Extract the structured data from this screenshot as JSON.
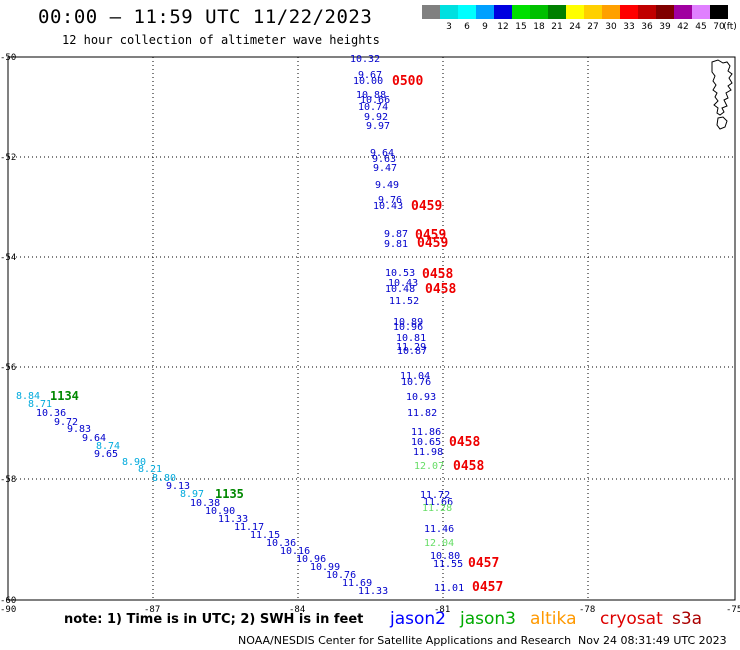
{
  "header": {
    "title": "00:00 – 11:59 UTC 11/22/2023",
    "subtitle": "12 hour collection of altimeter wave heights"
  },
  "colorbar": {
    "unit_label": "(ft)",
    "swatches": [
      {
        "color": "#808080",
        "label": ""
      },
      {
        "color": "#00e0e0",
        "label": "3"
      },
      {
        "color": "#00ffff",
        "label": "6"
      },
      {
        "color": "#00a0ff",
        "label": "9"
      },
      {
        "color": "#0000e0",
        "label": "12"
      },
      {
        "color": "#00e000",
        "label": "15"
      },
      {
        "color": "#00c000",
        "label": "18"
      },
      {
        "color": "#008000",
        "label": "21"
      },
      {
        "color": "#ffff00",
        "label": "24"
      },
      {
        "color": "#ffd000",
        "label": "27"
      },
      {
        "color": "#ffa000",
        "label": "30"
      },
      {
        "color": "#ff0000",
        "label": "33"
      },
      {
        "color": "#c00000",
        "label": "36"
      },
      {
        "color": "#800000",
        "label": "39"
      },
      {
        "color": "#a000a0",
        "label": "42"
      },
      {
        "color": "#e080ff",
        "label": "45"
      },
      {
        "color": "#000000",
        "label": "70"
      }
    ]
  },
  "axes": {
    "lon_ticks": [
      "-90",
      "-87",
      "-84",
      "-81",
      "-78",
      "-75"
    ],
    "lat_ticks": [
      "-50",
      "-52",
      "-54",
      "-56",
      "-58",
      "-60"
    ]
  },
  "tracks": {
    "jason2_track": {
      "color": "#0000cc",
      "values": [
        "10.32",
        "9.67",
        "10.00",
        "10.88",
        "10.66",
        "10.74",
        "9.92",
        "9.97",
        "9.64",
        "9.63",
        "9.47",
        "9.49",
        "9.76",
        "10.43",
        "9.87",
        "9.81",
        "10.53",
        "10.43",
        "10.48",
        "11.52",
        "10.89",
        "10.96",
        "10.81",
        "11.29",
        "10.87",
        "11.04",
        "10.76",
        "10.93",
        "11.82",
        "11.86",
        "10.65",
        "11.98",
        "11.72",
        "11.66",
        "11.46",
        "10.80",
        "11.55",
        "11.01"
      ]
    },
    "jason2_track_west": {
      "color": "#0000cc",
      "values": [
        "10.36",
        "9.72",
        "9.83",
        "9.64",
        "9.65",
        "10.38",
        "10.90",
        "11.33",
        "11.17",
        "11.15",
        "10.36",
        "10.16",
        "10.96",
        "10.99",
        "10.76",
        "11.69",
        "11.33",
        "9.13"
      ]
    },
    "light_values": {
      "color": "#00aadd",
      "values": [
        "8.84",
        "8.71",
        "8.74",
        "8.90",
        "8.21",
        "8.80",
        "8.97"
      ]
    },
    "green_values": {
      "color": "#66dd66",
      "values": [
        "12.07",
        "11.28",
        "12.04"
      ]
    },
    "time_labels_red": [
      "0500",
      "0459",
      "0459",
      "0459",
      "0458",
      "0458",
      "0458",
      "0458",
      "0457",
      "0457"
    ],
    "time_labels_green": [
      "1134",
      "1135"
    ]
  },
  "legend": {
    "note": "note: 1) Time is in UTC; 2) SWH is in feet",
    "items": [
      {
        "label": "jason2",
        "color": "#0000ff"
      },
      {
        "label": "jason3",
        "color": "#00aa00"
      },
      {
        "label": "altika",
        "color": "#ff9900"
      },
      {
        "label": "cryosat",
        "color": "#dd0000"
      },
      {
        "label": "s3a",
        "color": "#aa0000"
      }
    ]
  },
  "footer": {
    "credit": "NOAA/NESDIS Center for Satellite Applications and Research",
    "timestamp": "Nov 24 08:31:49 UTC 2023"
  }
}
